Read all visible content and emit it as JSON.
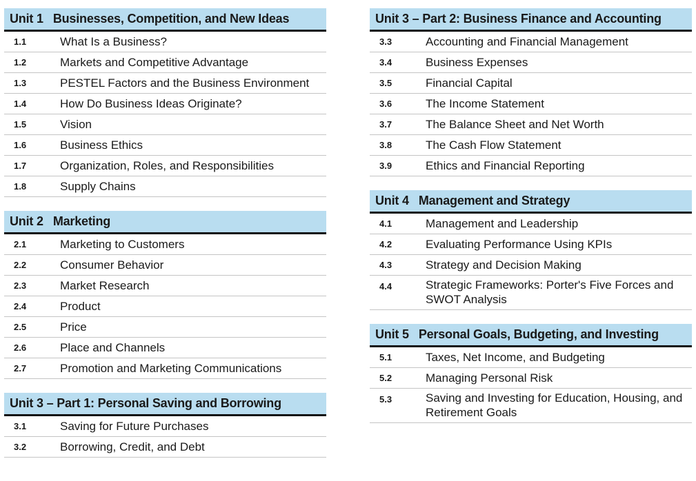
{
  "left_units": [
    {
      "num": "Unit 1",
      "title": "Businesses, Competition, and New Ideas",
      "lessons": [
        {
          "num": "1.1",
          "title": "What Is a Business?"
        },
        {
          "num": "1.2",
          "title": "Markets and Competitive Advantage"
        },
        {
          "num": "1.3",
          "title": "PESTEL Factors and the Business Environment"
        },
        {
          "num": "1.4",
          "title": "How Do Business Ideas Originate?"
        },
        {
          "num": "1.5",
          "title": "Vision"
        },
        {
          "num": "1.6",
          "title": "Business Ethics"
        },
        {
          "num": "1.7",
          "title": "Organization, Roles, and Responsibilities"
        },
        {
          "num": "1.8",
          "title": "Supply Chains"
        }
      ]
    },
    {
      "num": "Unit 2",
      "title": "Marketing",
      "lessons": [
        {
          "num": "2.1",
          "title": "Marketing to Customers"
        },
        {
          "num": "2.2",
          "title": "Consumer Behavior"
        },
        {
          "num": "2.3",
          "title": "Market Research"
        },
        {
          "num": "2.4",
          "title": "Product"
        },
        {
          "num": "2.5",
          "title": "Price"
        },
        {
          "num": "2.6",
          "title": "Place and Channels"
        },
        {
          "num": "2.7",
          "title": "Promotion and Marketing Communications"
        }
      ]
    },
    {
      "num": "",
      "title": "Unit 3 – Part 1: Personal Saving and Borrowing",
      "lessons": [
        {
          "num": "3.1",
          "title": "Saving for Future Purchases"
        },
        {
          "num": "3.2",
          "title": "Borrowing, Credit, and Debt"
        }
      ]
    }
  ],
  "right_units": [
    {
      "num": "",
      "title": "Unit 3 – Part 2: Business Finance and Accounting",
      "lessons": [
        {
          "num": "3.3",
          "title": "Accounting and Financial Management"
        },
        {
          "num": "3.4",
          "title": "Business Expenses"
        },
        {
          "num": "3.5",
          "title": "Financial Capital"
        },
        {
          "num": "3.6",
          "title": "The Income Statement"
        },
        {
          "num": "3.7",
          "title": "The Balance Sheet and Net Worth"
        },
        {
          "num": "3.8",
          "title": "The Cash Flow Statement"
        },
        {
          "num": "3.9",
          "title": "Ethics and Financial Reporting"
        }
      ]
    },
    {
      "num": "Unit 4",
      "title": "Management and Strategy",
      "lessons": [
        {
          "num": "4.1",
          "title": "Management and Leadership"
        },
        {
          "num": "4.2",
          "title": "Evaluating Performance Using KPIs"
        },
        {
          "num": "4.3",
          "title": "Strategy and Decision Making"
        },
        {
          "num": "4.4",
          "title": "Strategic Frameworks: Porter's Five Forces and SWOT Analysis"
        }
      ]
    },
    {
      "num": "Unit 5",
      "title": "Personal Goals, Budgeting, and Investing",
      "lessons": [
        {
          "num": "5.1",
          "title": "Taxes, Net Income, and Budgeting"
        },
        {
          "num": "5.2",
          "title": "Managing Personal Risk"
        },
        {
          "num": "5.3",
          "title": "Saving and Investing for Education, Housing, and Retirement Goals"
        }
      ]
    }
  ],
  "colors": {
    "header_bg": "#b9ddf0",
    "rule": "#111111",
    "divider": "#c4c4c4"
  }
}
